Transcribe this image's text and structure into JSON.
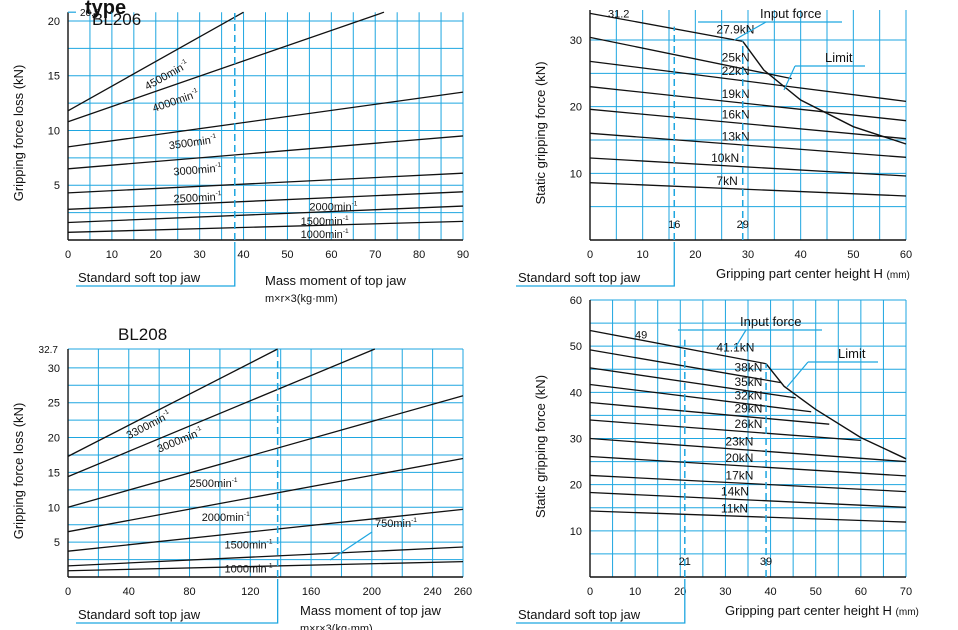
{
  "page": {
    "header": "type"
  },
  "colors": {
    "grid": "#1ea6e0",
    "curve": "#111111",
    "annotation": "#1ea6e0"
  },
  "chart_data": [
    {
      "id": "bl206-loss",
      "type": "line",
      "title": "BL206",
      "xlabel": "Mass moment of top jaw",
      "xlabel2": "m×r×3(kg·mm)",
      "ylabel": "Gripping force loss (kN)",
      "xlim": [
        0,
        90
      ],
      "ylim": [
        0,
        21
      ],
      "xticks": [
        0,
        10,
        20,
        30,
        40,
        50,
        60,
        70,
        80,
        90
      ],
      "xtick_labels": [
        "0",
        "10",
        "20",
        "30",
        "40",
        "50",
        "60",
        "70",
        "80",
        "90"
      ],
      "yticks": [
        5,
        10,
        15,
        20
      ],
      "ytick_labels": [
        "5",
        "10",
        "15",
        "20"
      ],
      "extra_label": "20.8",
      "ref_value_x": 38,
      "ref_label": "Standard soft top jaw",
      "series": [
        {
          "name": "4500min-1",
          "x": [
            0,
            40
          ],
          "y": [
            11.8,
            20.8
          ],
          "label_at": 14.0
        },
        {
          "name": "4000min-1",
          "x": [
            0,
            72
          ],
          "y": [
            10.8,
            20.8
          ],
          "label_at": 15.5
        },
        {
          "name": "3500min-1",
          "x": [
            0,
            90
          ],
          "y": [
            8.5,
            13.5
          ],
          "label_at": 19.0
        },
        {
          "name": "3000min-1",
          "x": [
            0,
            90
          ],
          "y": [
            6.5,
            9.5
          ],
          "label_at": 20.0
        },
        {
          "name": "2500min-1",
          "x": [
            0,
            90
          ],
          "y": [
            4.3,
            6.1
          ],
          "label_at": 20.0
        },
        {
          "name": "2000min-1",
          "x": [
            0,
            90
          ],
          "y": [
            2.8,
            4.4
          ],
          "label_at": 55.0
        },
        {
          "name": "1500min-1",
          "x": [
            0,
            90
          ],
          "y": [
            1.6,
            3.1
          ],
          "label_at": 53.0
        },
        {
          "name": "1000min-1",
          "x": [
            0,
            90
          ],
          "y": [
            0.7,
            1.7
          ],
          "label_at": 53.0
        }
      ]
    },
    {
      "id": "bl206-static",
      "type": "line",
      "title": "",
      "xlabel": "Gripping part center height H",
      "xunit": "(mm)",
      "ylabel": "Static gripping force (kN)",
      "xlim": [
        0,
        60
      ],
      "ylim": [
        0,
        34.5
      ],
      "xticks": [
        0,
        10,
        20,
        30,
        40,
        50,
        60
      ],
      "xtick_labels": [
        "0",
        "10",
        "20",
        "30",
        "40",
        "50",
        "60"
      ],
      "yticks": [
        10,
        20,
        30
      ],
      "ytick_labels": [
        "10",
        "20",
        "30"
      ],
      "extra_label": "31.2",
      "ref_value_x": 16,
      "ref_label": "Standard soft top jaw",
      "ref_x_labels": [
        "16",
        "29"
      ],
      "ref_x_values": [
        16,
        29
      ],
      "callouts": [
        "Input force",
        "Limit"
      ],
      "limit_curve": {
        "x": [
          29,
          33,
          40,
          50,
          60
        ],
        "y": [
          29.8,
          25.5,
          21.0,
          17.0,
          14.4
        ]
      },
      "series": [
        {
          "name": "27.9kN",
          "x": [
            0,
            29
          ],
          "y": [
            34.0,
            29.8
          ]
        },
        {
          "name": "25kN",
          "x": [
            0,
            38.3
          ],
          "y": [
            30.4,
            24.2
          ]
        },
        {
          "name": "22kN",
          "x": [
            0,
            60
          ],
          "y": [
            26.8,
            20.8
          ]
        },
        {
          "name": "19kN",
          "x": [
            0,
            60
          ],
          "y": [
            23.0,
            17.9
          ]
        },
        {
          "name": "16kN",
          "x": [
            0,
            60
          ],
          "y": [
            19.6,
            15.2
          ]
        },
        {
          "name": "13kN",
          "x": [
            0,
            60
          ],
          "y": [
            16.0,
            12.4
          ]
        },
        {
          "name": "10kN",
          "x": [
            0,
            60
          ],
          "y": [
            12.3,
            9.6
          ]
        },
        {
          "name": "7kN",
          "x": [
            0,
            60
          ],
          "y": [
            8.6,
            6.6
          ]
        }
      ],
      "series_label_x": [
        24,
        25,
        25,
        25,
        25,
        25,
        23,
        24
      ]
    },
    {
      "id": "bl208-loss",
      "type": "line",
      "title": "BL208",
      "xlabel": "Mass moment of top jaw",
      "xlabel2": "m×r×3(kg·mm)",
      "ylabel": "Gripping force loss (kN)",
      "xlim": [
        0,
        260
      ],
      "ylim": [
        0,
        32.7
      ],
      "xticks": [
        0,
        40,
        80,
        120,
        160,
        200,
        240,
        260
      ],
      "xtick_labels": [
        "0",
        "40",
        "80",
        "120",
        "160",
        "200",
        "240",
        "260"
      ],
      "yticks": [
        5,
        10,
        15,
        20,
        25,
        30
      ],
      "ytick_labels": [
        "5",
        "10",
        "15",
        "20",
        "25",
        "30"
      ],
      "extra_label": "32.7",
      "ref_value_x": 138,
      "ref_label": "Standard soft top jaw",
      "series": [
        {
          "name": "3300min-1",
          "x": [
            0,
            138
          ],
          "y": [
            17.3,
            32.7
          ],
          "label_at": 40
        },
        {
          "name": "3000min-1",
          "x": [
            0,
            202
          ],
          "y": [
            14.4,
            32.7
          ],
          "label_at": 60
        },
        {
          "name": "2500min-1",
          "x": [
            0,
            260
          ],
          "y": [
            10.0,
            26.0
          ],
          "label_at": 80
        },
        {
          "name": "2000min-1",
          "x": [
            0,
            260
          ],
          "y": [
            6.5,
            17.0
          ],
          "label_at": 88
        },
        {
          "name": "1500min-1",
          "x": [
            0,
            260
          ],
          "y": [
            3.7,
            9.7
          ],
          "label_at": 103
        },
        {
          "name": "1000min-1",
          "x": [
            0,
            260
          ],
          "y": [
            1.6,
            4.3
          ],
          "label_at": 103
        },
        {
          "name": "750min-1",
          "x": [
            0,
            260
          ],
          "y": [
            0.9,
            2.2
          ],
          "label_at": 255
        }
      ]
    },
    {
      "id": "bl208-static",
      "type": "line",
      "title": "",
      "xlabel": "Gripping part center height H",
      "xunit": "(mm)",
      "ylabel": "Static gripping force (kN)",
      "xlim": [
        0,
        70
      ],
      "ylim": [
        0,
        60
      ],
      "xticks": [
        0,
        10,
        20,
        30,
        40,
        50,
        60,
        70
      ],
      "xtick_labels": [
        "0",
        "10",
        "20",
        "30",
        "40",
        "50",
        "60",
        "70"
      ],
      "yticks": [
        10,
        20,
        30,
        40,
        50,
        60
      ],
      "ytick_labels": [
        "10",
        "20",
        "30",
        "40",
        "50",
        "60"
      ],
      "extra_label": "49",
      "ref_value_x": 21,
      "ref_label": "Standard soft top jaw",
      "ref_x_labels": [
        "21",
        "39"
      ],
      "ref_x_values": [
        21,
        39
      ],
      "callouts": [
        "Input force",
        "Limit"
      ],
      "limit_curve": {
        "x": [
          39,
          43,
          50,
          60,
          70
        ],
        "y": [
          46.2,
          41.3,
          36.3,
          30.2,
          25.6
        ]
      },
      "series": [
        {
          "name": "41.1kN",
          "x": [
            0,
            39
          ],
          "y": [
            53.4,
            46.2
          ]
        },
        {
          "name": "38kN",
          "x": [
            0,
            42.3
          ],
          "y": [
            49.2,
            42.1
          ]
        },
        {
          "name": "35kN",
          "x": [
            0,
            45.6
          ],
          "y": [
            45.3,
            38.8
          ]
        },
        {
          "name": "32kN",
          "x": [
            0,
            49.0
          ],
          "y": [
            41.7,
            35.8
          ]
        },
        {
          "name": "29kN",
          "x": [
            0,
            53.0
          ],
          "y": [
            37.8,
            33.1
          ]
        },
        {
          "name": "26kN",
          "x": [
            0,
            60.0
          ],
          "y": [
            34.0,
            29.6
          ]
        },
        {
          "name": "23kN",
          "x": [
            0,
            70
          ],
          "y": [
            30.0,
            25.0
          ]
        },
        {
          "name": "20kN",
          "x": [
            0,
            70
          ],
          "y": [
            26.1,
            21.9
          ]
        },
        {
          "name": "17kN",
          "x": [
            0,
            70
          ],
          "y": [
            22.0,
            18.5
          ]
        },
        {
          "name": "14kN",
          "x": [
            0,
            70
          ],
          "y": [
            18.3,
            15.1
          ]
        },
        {
          "name": "11kN",
          "x": [
            0,
            70
          ],
          "y": [
            14.3,
            11.9
          ]
        }
      ],
      "series_label_x": [
        28,
        32,
        32,
        32,
        32,
        32,
        30,
        30,
        30,
        29,
        29
      ]
    }
  ]
}
